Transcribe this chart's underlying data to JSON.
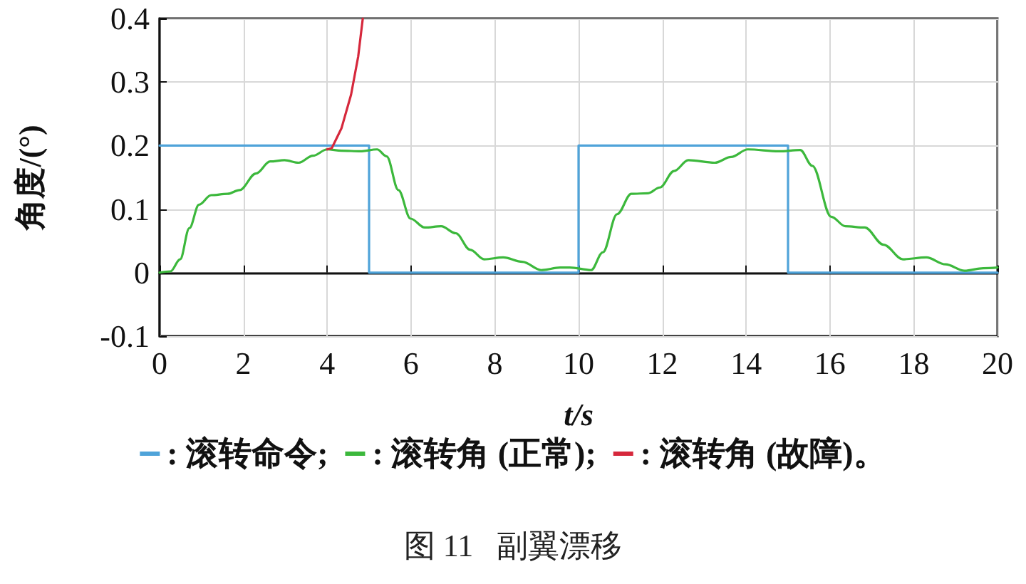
{
  "chart_data": {
    "type": "line",
    "xlabel": "t/s",
    "ylabel": "角度/(°)",
    "annotations": [
      "图 11   副翼漂移"
    ],
    "xlim": [
      0,
      20
    ],
    "ylim": [
      -0.1,
      0.4
    ],
    "xticks": [
      0,
      2,
      4,
      6,
      8,
      10,
      12,
      14,
      16,
      18,
      20
    ],
    "yticks": [
      -0.1,
      0,
      0.1,
      0.2,
      0.3,
      0.4
    ],
    "grid": true,
    "legend": "bottom",
    "marker": "none",
    "line_style": "solid",
    "series": [
      {
        "name": ": 滚转命令;",
        "color": "#4fa3d9",
        "x": [
          0,
          5,
          5,
          10,
          10,
          15,
          15,
          20
        ],
        "values": [
          0.2,
          0.2,
          0,
          0,
          0.2,
          0.2,
          0,
          0
        ]
      },
      {
        "name": ": 滚转角 (正常);",
        "color": "#3cb83c",
        "x": [
          0,
          0.26,
          0.49,
          0.71,
          0.94,
          1.23,
          1.62,
          1.91,
          2.3,
          2.64,
          2.98,
          3.32,
          3.66,
          4.0,
          4.34,
          4.8,
          5.19,
          5.42,
          5.7,
          5.99,
          6.33,
          6.72,
          7.07,
          7.41,
          7.75,
          8.2,
          8.66,
          9.11,
          9.56,
          9.79,
          10.3,
          10.58,
          10.92,
          11.26,
          11.66,
          11.94,
          12.28,
          12.62,
          13.25,
          13.64,
          14.04,
          14.78,
          15.29,
          15.58,
          16.03,
          16.37,
          16.83,
          17.28,
          17.74,
          18.3,
          18.76,
          19.21,
          19.66,
          20.0
        ],
        "values": [
          0,
          0.002,
          0.021,
          0.07,
          0.107,
          0.122,
          0.124,
          0.13,
          0.156,
          0.175,
          0.177,
          0.173,
          0.184,
          0.194,
          0.192,
          0.191,
          0.194,
          0.183,
          0.13,
          0.085,
          0.071,
          0.073,
          0.062,
          0.036,
          0.021,
          0.024,
          0.017,
          0.004,
          0.008,
          0.008,
          0.004,
          0.032,
          0.092,
          0.124,
          0.125,
          0.134,
          0.16,
          0.177,
          0.173,
          0.182,
          0.194,
          0.191,
          0.193,
          0.168,
          0.088,
          0.073,
          0.071,
          0.044,
          0.021,
          0.024,
          0.013,
          0.003,
          0.007,
          0.008
        ]
      },
      {
        "name": ": 滚转角 (故障)。",
        "color": "#d6283c",
        "x": [
          4.0,
          4.11,
          4.34,
          4.57,
          4.74,
          4.85
        ],
        "values": [
          0.194,
          0.196,
          0.227,
          0.28,
          0.34,
          0.4
        ]
      }
    ]
  }
}
